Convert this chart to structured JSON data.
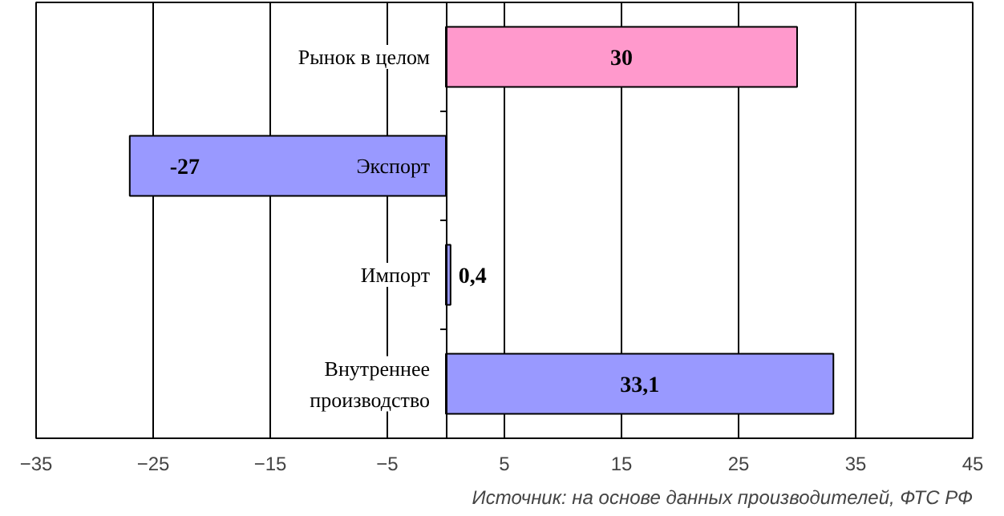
{
  "chart_data": {
    "type": "bar",
    "orientation": "horizontal",
    "categories": [
      "Рынок в целом",
      "Экспорт",
      "Импорт",
      "Внутреннее производство"
    ],
    "values": [
      30,
      -27,
      0.4,
      33.1
    ],
    "colors": [
      "#ff99cc",
      "#9999ff",
      "#9999ff",
      "#9999ff"
    ],
    "value_labels": [
      "30",
      "-27",
      "0,4",
      "33,1"
    ],
    "xlim": [
      -35,
      45
    ],
    "xticks": [
      -35,
      -25,
      -15,
      -5,
      5,
      15,
      25,
      35,
      45
    ],
    "grid": "x",
    "annotations": [
      "Источник: на основе данных производителей, ФТС РФ"
    ]
  }
}
